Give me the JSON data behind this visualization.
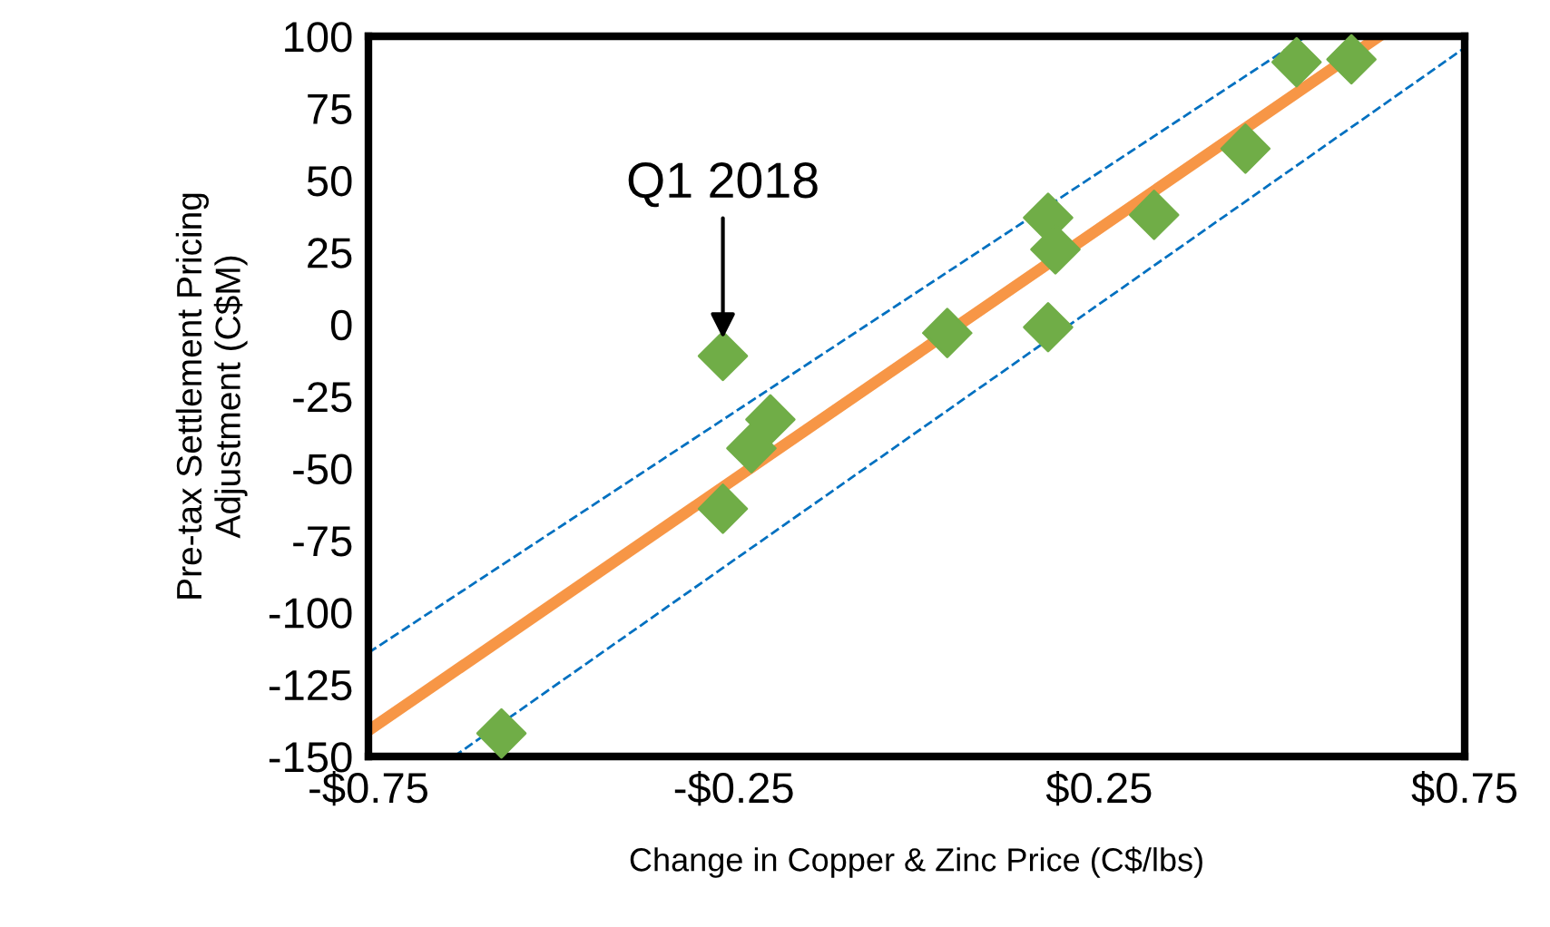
{
  "chart_data": {
    "type": "scatter",
    "xlabel": "Change in Copper & Zinc Price (C$/lbs)",
    "ylabel": "Pre-tax Settlement Pricing\nAdjustment (C$M)",
    "series": [
      {
        "color": "#70ad47",
        "marker": "diamond",
        "x": [
          -0.568,
          -0.265,
          -0.265,
          -0.226,
          -0.2,
          0.042,
          0.18,
          0.19,
          0.18,
          0.325,
          0.45,
          0.52,
          0.595
        ],
        "values": [
          -142,
          -64,
          -11,
          -43,
          -33,
          -3,
          37,
          26,
          -1,
          38,
          61,
          91,
          92
        ]
      },
      {
        "type": "line",
        "color": "#f79646",
        "line_style": "solid",
        "x": [
          -0.75,
          0.633
        ],
        "values": [
          -141,
          100
        ]
      },
      {
        "type": "line",
        "color": "#0070c0",
        "line_style": "dashed",
        "x": [
          -0.75,
          0.533
        ],
        "values": [
          -114,
          100
        ]
      },
      {
        "type": "line",
        "color": "#0070c0",
        "line_style": "dashed",
        "x": [
          -0.633,
          0.75
        ],
        "values": [
          -150,
          96
        ]
      }
    ],
    "annotations": [
      {
        "text": "Q1 2018",
        "x": -0.265,
        "y": -11
      }
    ],
    "xlim": [
      -0.75,
      0.75
    ],
    "ylim": [
      -150,
      100
    ],
    "xticks": [
      {
        "value": -0.75,
        "label": "-$0.75"
      },
      {
        "value": -0.25,
        "label": "-$0.25"
      },
      {
        "value": 0.25,
        "label": "$0.25"
      },
      {
        "value": 0.75,
        "label": "$0.75"
      }
    ],
    "yticks": [
      -150,
      -125,
      -100,
      -75,
      -50,
      -25,
      0,
      25,
      50,
      75,
      100
    ],
    "grid": false,
    "legend": false
  }
}
